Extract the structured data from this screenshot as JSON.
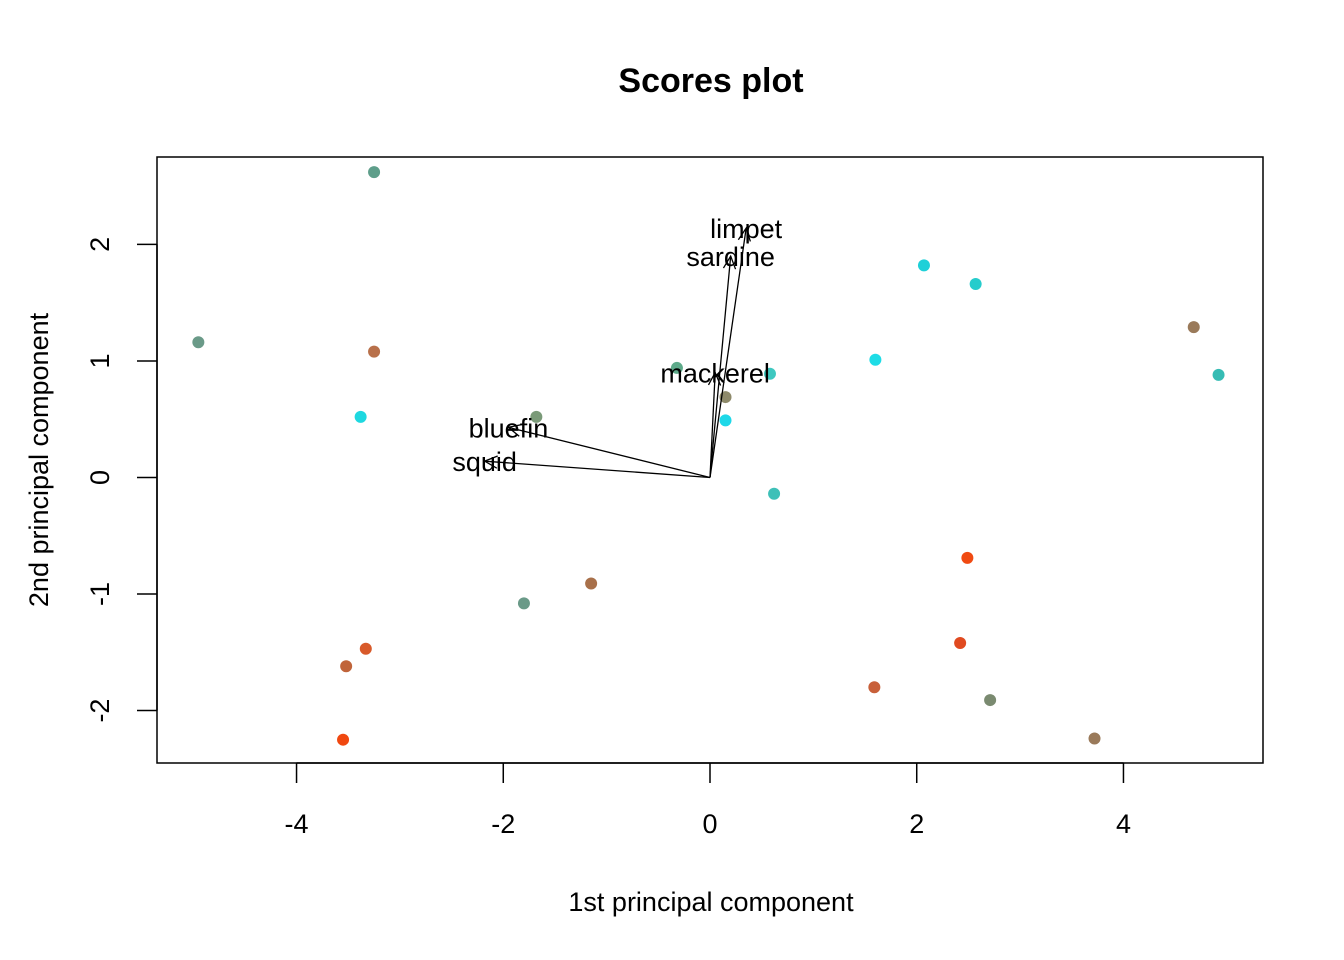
{
  "chart_data": {
    "type": "scatter",
    "title": "Scores plot",
    "xlabel": "1st principal component",
    "ylabel": "2nd principal component",
    "xlim": [
      -5.35,
      5.35
    ],
    "ylim": [
      -2.45,
      2.75
    ],
    "xticks": [
      -4,
      -2,
      0,
      2,
      4
    ],
    "yticks": [
      -2,
      -1,
      0,
      1,
      2
    ],
    "grid": false,
    "legend": "none",
    "points": [
      {
        "x": -3.25,
        "y": 2.62,
        "color": "#5e9e8a"
      },
      {
        "x": -4.95,
        "y": 1.16,
        "color": "#6a9a88"
      },
      {
        "x": -3.25,
        "y": 1.08,
        "color": "#b8704a"
      },
      {
        "x": -3.38,
        "y": 0.52,
        "color": "#1ed8e0"
      },
      {
        "x": -1.68,
        "y": 0.52,
        "color": "#7a9a78"
      },
      {
        "x": -0.32,
        "y": 0.94,
        "color": "#5eaa8a"
      },
      {
        "x": 0.58,
        "y": 0.89,
        "color": "#3ec8c0"
      },
      {
        "x": 0.15,
        "y": 0.69,
        "color": "#8e8a6a"
      },
      {
        "x": 0.15,
        "y": 0.49,
        "color": "#1ed8e8"
      },
      {
        "x": 0.62,
        "y": -0.14,
        "color": "#3ec0b8"
      },
      {
        "x": 1.6,
        "y": 1.01,
        "color": "#1edce6"
      },
      {
        "x": 2.07,
        "y": 1.82,
        "color": "#1ed0d8"
      },
      {
        "x": 2.57,
        "y": 1.66,
        "color": "#26cccc"
      },
      {
        "x": 4.68,
        "y": 1.29,
        "color": "#9a7a5a"
      },
      {
        "x": 4.92,
        "y": 0.88,
        "color": "#36bcb4"
      },
      {
        "x": -1.15,
        "y": -0.91,
        "color": "#a8704a"
      },
      {
        "x": -1.8,
        "y": -1.08,
        "color": "#6a9a88"
      },
      {
        "x": -3.33,
        "y": -1.47,
        "color": "#d85a2a"
      },
      {
        "x": -3.52,
        "y": -1.62,
        "color": "#c0643a"
      },
      {
        "x": -3.55,
        "y": -2.25,
        "color": "#f04810"
      },
      {
        "x": 2.49,
        "y": -0.69,
        "color": "#f04a12"
      },
      {
        "x": 2.42,
        "y": -1.42,
        "color": "#e04a20"
      },
      {
        "x": 1.59,
        "y": -1.8,
        "color": "#c8603a"
      },
      {
        "x": 2.71,
        "y": -1.91,
        "color": "#7a8a70"
      },
      {
        "x": 3.72,
        "y": -2.24,
        "color": "#9a7a5a"
      }
    ],
    "loadings": [
      {
        "label": "limpet",
        "x": 0.35,
        "y": 2.14
      },
      {
        "label": "sardine",
        "x": 0.2,
        "y": 1.9
      },
      {
        "label": "mackerel",
        "x": 0.05,
        "y": 0.9
      },
      {
        "label": "bluefin",
        "x": -1.95,
        "y": 0.43
      },
      {
        "label": "squid",
        "x": -2.18,
        "y": 0.14
      }
    ]
  }
}
